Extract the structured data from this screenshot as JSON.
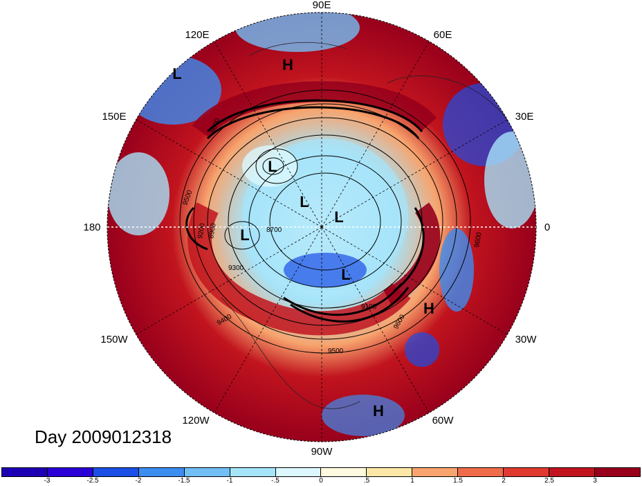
{
  "map": {
    "projection": "north polar stereographic",
    "longitude_labels": {
      "top": "90E",
      "upper_left": "120E",
      "upper_right": "60E",
      "left_upper": "150E",
      "right_upper": "30E",
      "left": "180",
      "right": "0",
      "left_lower": "150W",
      "right_lower": "30W",
      "lower_left": "120W",
      "lower_right": "60W",
      "bottom": "90W"
    },
    "pressure_centers": [
      "L",
      "H",
      "L",
      "L",
      "L",
      "L",
      "L",
      "H",
      "H"
    ],
    "contour_labels": [
      "9600",
      "9500",
      "9300",
      "9200",
      "8900",
      "8700",
      "9100",
      "9600",
      "9500",
      "9400",
      "9600"
    ],
    "contour_levels_note": "geopotential height contours"
  },
  "day_label": "Day 2009012318",
  "colorbar": {
    "colors": [
      "#2a00d6",
      "#1c4fe6",
      "#3d8cf0",
      "#72bff6",
      "#a6e4fa",
      "#dcf7fd",
      "#fffae0",
      "#fde7a6",
      "#f7a46e",
      "#ef6c4b",
      "#e03a30",
      "#c1141e",
      "#98001c"
    ],
    "ticks": [
      "-3",
      "-2.5",
      "-2",
      "-1.5",
      "-1",
      "-.5",
      "0",
      ".5",
      "1",
      "1.5",
      "2",
      "2.5",
      "3"
    ]
  }
}
